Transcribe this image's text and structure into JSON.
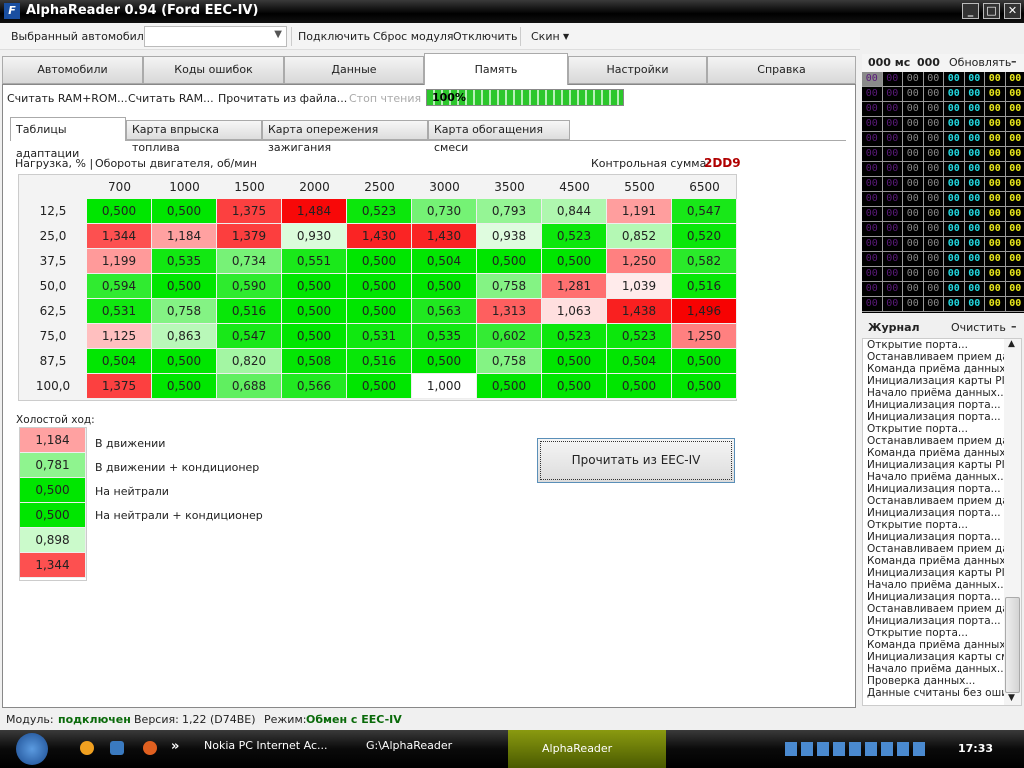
{
  "window": {
    "title": "AlphaReader 0.94 (Ford EEC-IV)",
    "controls": [
      "minimize",
      "maximize",
      "close"
    ]
  },
  "toolbar": {
    "car_label": "Выбранный автомобиль:",
    "car_value": "",
    "connect": "Подключить",
    "reset": "Сброс модуля",
    "disconnect": "Отключить",
    "skin": "Скин"
  },
  "tabs": [
    {
      "label": "Автомобили"
    },
    {
      "label": "Коды ошибок"
    },
    {
      "label": "Данные"
    },
    {
      "label": "Память",
      "active": true
    },
    {
      "label": "Настройки"
    },
    {
      "label": "Справка"
    }
  ],
  "actions": {
    "read_ram_rom": "Считать RAM+ROM...",
    "read_ram": "Считать RAM...",
    "read_file": "Прочитать из файла...",
    "stop": "Стоп чтения",
    "progress_text": "100%",
    "progress": 100
  },
  "subtabs": [
    {
      "label": "Таблицы адаптации",
      "active": true
    },
    {
      "label": "Карта впрыска топлива"
    },
    {
      "label": "Карта опережения зажигания"
    },
    {
      "label": "Карта обогащения смеси"
    }
  ],
  "table": {
    "row_axis": "Нагрузка, % |",
    "col_axis": "Обороты двигателя, об/мин",
    "checksum_label": "Контрольная сумма:",
    "checksum": "2DD9",
    "columns": [
      "700",
      "1000",
      "1500",
      "2000",
      "2500",
      "3000",
      "3500",
      "4500",
      "5500",
      "6500"
    ],
    "rows": [
      {
        "load": "12,5",
        "values": [
          "0,500",
          "0,500",
          "1,375",
          "1,484",
          "0,523",
          "0,730",
          "0,793",
          "0,844",
          "1,191",
          "0,547"
        ]
      },
      {
        "load": "25,0",
        "values": [
          "1,344",
          "1,184",
          "1,379",
          "0,930",
          "1,430",
          "1,430",
          "0,938",
          "0,523",
          "0,852",
          "0,520"
        ]
      },
      {
        "load": "37,5",
        "values": [
          "1,199",
          "0,535",
          "0,734",
          "0,551",
          "0,500",
          "0,504",
          "0,500",
          "0,500",
          "1,250",
          "0,582"
        ]
      },
      {
        "load": "50,0",
        "values": [
          "0,594",
          "0,500",
          "0,590",
          "0,500",
          "0,500",
          "0,500",
          "0,758",
          "1,281",
          "1,039",
          "0,516"
        ]
      },
      {
        "load": "62,5",
        "values": [
          "0,531",
          "0,758",
          "0,516",
          "0,500",
          "0,500",
          "0,563",
          "1,313",
          "1,063",
          "1,438",
          "1,496"
        ]
      },
      {
        "load": "75,0",
        "values": [
          "1,125",
          "0,863",
          "0,547",
          "0,500",
          "0,531",
          "0,535",
          "0,602",
          "0,523",
          "0,523",
          "1,250"
        ]
      },
      {
        "load": "87,5",
        "values": [
          "0,504",
          "0,500",
          "0,820",
          "0,508",
          "0,516",
          "0,500",
          "0,758",
          "0,500",
          "0,504",
          "0,500"
        ]
      },
      {
        "load": "100,0",
        "values": [
          "1,375",
          "0,500",
          "0,688",
          "0,566",
          "0,500",
          "1,000",
          "0,500",
          "0,500",
          "0,500",
          "0,500"
        ]
      }
    ]
  },
  "idle": {
    "title": "Холостой ход:",
    "values": [
      "1,184",
      "0,781",
      "0,500",
      "0,500",
      "0,898",
      "1,344"
    ],
    "labels": [
      "В движении",
      "В движении + кондиционер",
      "На нейтрали",
      "На нейтрали + кондиционер"
    ]
  },
  "read_button": "Прочитать из EEC-IV",
  "monitor": {
    "ms": "000 мс",
    "count": "000",
    "refresh": "Обновлять",
    "collapse": "–",
    "cell": "00",
    "rows": 16,
    "cols": 8,
    "colors": [
      "#5a1a7a",
      "#5a1a7a",
      "#8a8a8a",
      "#8a8a8a",
      "#22d8e0",
      "#22d8e0",
      "#e8e81a",
      "#e8e81a"
    ],
    "selected_color": "#8a8a8a"
  },
  "journal": {
    "title": "Журнал",
    "clear": "Очистить",
    "collapse": "–",
    "items": [
      "Открытие порта...",
      "Останавливаем прием данных",
      "Команда приёма данных P...",
      "Инициализация карты PID",
      "Начало приёма данных...",
      "Инициализация порта...",
      "Инициализация порта...",
      "Открытие порта...",
      "Останавливаем прием данных",
      "Команда приёма данных P...",
      "Инициализация карты PID",
      "Начало приёма данных...",
      "Инициализация порта...",
      "Останавливаем прием данных",
      "Инициализация порта...",
      "Открытие порта...",
      "Инициализация порта...",
      "Останавливаем прием данных",
      "Команда приёма данных T...",
      "Инициализация карты PID",
      "Начало приёма данных...",
      "Инициализация порта...",
      "Останавливаем прием данных",
      "Инициализация порта...",
      "Открытие порта...",
      "Команда приёма данных с",
      "Инициализация карты смеси",
      "Начало приёма данных...",
      "Проверка данных...",
      "Данные считаны без ошибок"
    ]
  },
  "status": {
    "module_label": "Модуль:",
    "module_value": "подключен",
    "version_label": "Версия:",
    "version_value": "1,22 (D74BE)",
    "mode_label": "Режим:",
    "mode_value": "Обмен с EEC-IV"
  },
  "taskbar": {
    "chevron": "»",
    "items": [
      "Nokia PC Internet Ac...",
      "G:\\AlphaReader",
      "AlphaReader"
    ],
    "clock": "17:33"
  }
}
